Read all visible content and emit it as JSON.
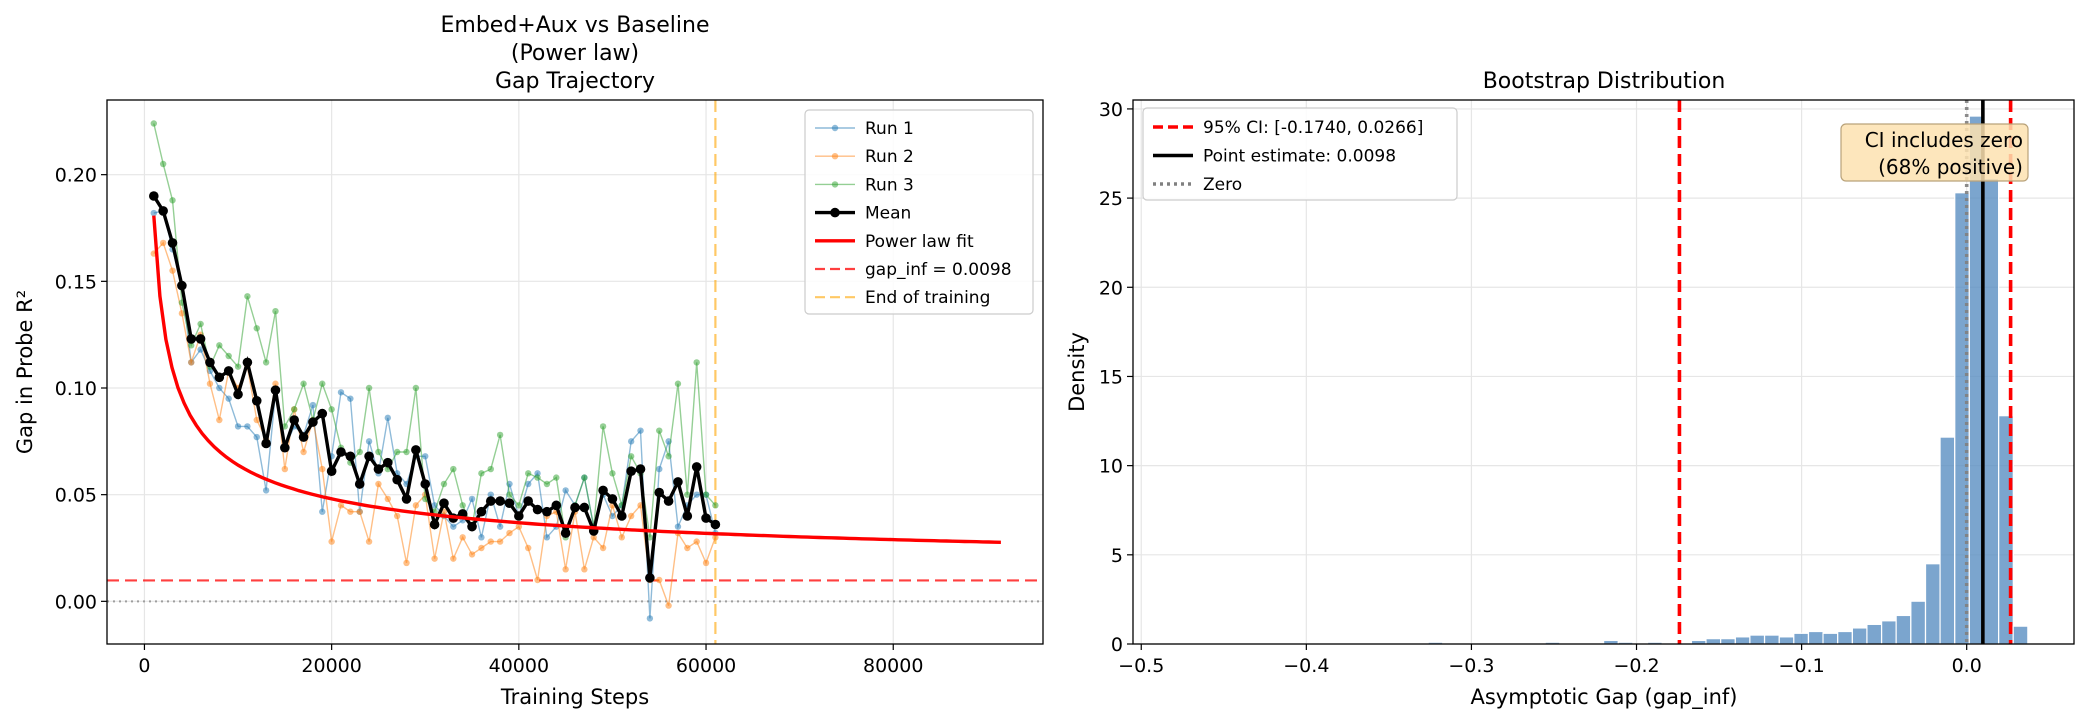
{
  "chart_data": [
    {
      "type": "line",
      "title": [
        "Embed+Aux vs Baseline",
        "(Power law)",
        "Gap Trajectory"
      ],
      "xlabel": "Training Steps",
      "ylabel": "Gap in Probe R²",
      "xlim": [
        -4000,
        96000
      ],
      "ylim": [
        -0.02,
        0.235
      ],
      "xticks": [
        0,
        20000,
        40000,
        60000,
        80000
      ],
      "xtick_labels": [
        "0",
        "20000",
        "40000",
        "60000",
        "80000"
      ],
      "yticks": [
        0.0,
        0.05,
        0.1,
        0.15,
        0.2
      ],
      "ytick_labels": [
        "0.00",
        "0.05",
        "0.10",
        "0.15",
        "0.20"
      ],
      "grid": true,
      "legend_position": "top-right",
      "colors": {
        "run1": "#1f77b4",
        "run2": "#ff7f0e",
        "run3": "#2ca02c",
        "mean": "#000000",
        "fit": "#ff0000",
        "gap_inf": "#ff0000",
        "end_of_training": "#ffa500"
      },
      "x": [
        1000,
        2000,
        3000,
        4000,
        5000,
        6000,
        7000,
        8000,
        9000,
        10000,
        11000,
        12000,
        13000,
        14000,
        15000,
        16000,
        17000,
        18000,
        19000,
        20000,
        21000,
        22000,
        23000,
        24000,
        25000,
        26000,
        27000,
        28000,
        29000,
        30000,
        31000,
        32000,
        33000,
        34000,
        35000,
        36000,
        37000,
        38000,
        39000,
        40000,
        41000,
        42000,
        43000,
        44000,
        45000,
        46000,
        47000,
        48000,
        49000,
        50000,
        51000,
        52000,
        53000,
        54000,
        55000,
        56000,
        57000,
        58000,
        59000,
        60000,
        61000
      ],
      "series": [
        {
          "name": "Run 1",
          "key": "run1",
          "values": [
            0.182,
            0.183,
            0.165,
            0.148,
            0.112,
            0.118,
            0.108,
            0.1,
            0.095,
            0.082,
            0.082,
            0.077,
            0.052,
            0.098,
            0.072,
            0.082,
            0.078,
            0.092,
            0.042,
            0.068,
            0.098,
            0.095,
            0.042,
            0.075,
            0.06,
            0.086,
            0.06,
            0.055,
            0.068,
            0.068,
            0.045,
            0.04,
            0.035,
            0.038,
            0.048,
            0.03,
            0.05,
            0.035,
            0.055,
            0.04,
            0.055,
            0.06,
            0.03,
            0.035,
            0.052,
            0.045,
            0.058,
            0.035,
            0.05,
            0.04,
            0.045,
            0.075,
            0.08,
            -0.008,
            0.062,
            0.075,
            0.035,
            0.045,
            0.05,
            0.05,
            0.032
          ]
        },
        {
          "name": "Run 2",
          "key": "run2",
          "values": [
            0.163,
            0.168,
            0.155,
            0.135,
            0.112,
            0.125,
            0.102,
            0.085,
            0.108,
            0.1,
            0.11,
            0.085,
            0.076,
            0.102,
            0.062,
            0.09,
            0.07,
            0.085,
            0.062,
            0.028,
            0.045,
            0.042,
            0.042,
            0.028,
            0.055,
            0.048,
            0.04,
            0.018,
            0.045,
            0.05,
            0.02,
            0.042,
            0.02,
            0.03,
            0.022,
            0.025,
            0.028,
            0.028,
            0.032,
            0.035,
            0.025,
            0.01,
            0.04,
            0.042,
            0.015,
            0.042,
            0.015,
            0.03,
            0.025,
            0.045,
            0.03,
            0.04,
            0.045,
            0.01,
            0.01,
            -0.002,
            0.032,
            0.025,
            0.028,
            0.018,
            0.03
          ]
        },
        {
          "name": "Run 3",
          "key": "run3",
          "values": [
            0.224,
            0.205,
            0.188,
            0.14,
            0.12,
            0.13,
            0.11,
            0.12,
            0.115,
            0.11,
            0.143,
            0.128,
            0.112,
            0.136,
            0.082,
            0.09,
            0.102,
            0.085,
            0.102,
            0.09,
            0.072,
            0.065,
            0.07,
            0.1,
            0.07,
            0.062,
            0.07,
            0.07,
            0.1,
            0.048,
            0.042,
            0.055,
            0.062,
            0.045,
            0.035,
            0.06,
            0.062,
            0.078,
            0.05,
            0.045,
            0.06,
            0.058,
            0.055,
            0.058,
            0.03,
            0.045,
            0.058,
            0.035,
            0.082,
            0.06,
            0.045,
            0.068,
            0.06,
            0.03,
            0.08,
            0.068,
            0.102,
            0.05,
            0.112,
            0.05,
            0.045
          ]
        },
        {
          "name": "Mean",
          "key": "mean",
          "values": [
            0.19,
            0.183,
            0.168,
            0.148,
            0.123,
            0.123,
            0.112,
            0.105,
            0.108,
            0.097,
            0.112,
            0.094,
            0.074,
            0.099,
            0.072,
            0.085,
            0.077,
            0.084,
            0.088,
            0.061,
            0.07,
            0.068,
            0.055,
            0.068,
            0.062,
            0.065,
            0.057,
            0.048,
            0.071,
            0.055,
            0.036,
            0.046,
            0.039,
            0.041,
            0.035,
            0.042,
            0.047,
            0.047,
            0.046,
            0.04,
            0.047,
            0.043,
            0.042,
            0.045,
            0.032,
            0.044,
            0.044,
            0.033,
            0.052,
            0.048,
            0.04,
            0.061,
            0.062,
            0.011,
            0.051,
            0.047,
            0.056,
            0.04,
            0.063,
            0.039,
            0.036
          ]
        }
      ],
      "fit": {
        "name": "Power law fit",
        "key": "fit",
        "gap_inf": 0.0098,
        "a": 0.171,
        "b": -0.5,
        "x_start": 1000,
        "x_end": 91500
      },
      "reference_lines": [
        {
          "name": "gap_inf = 0.0098",
          "key": "gap_inf",
          "orientation": "horizontal",
          "value": 0.0098
        },
        {
          "name": "End of training",
          "key": "end_of_training",
          "orientation": "vertical",
          "value": 61000
        },
        {
          "name": "",
          "key": "zero",
          "orientation": "horizontal",
          "value": 0.0
        }
      ],
      "legend": [
        "Run 1",
        "Run 2",
        "Run 3",
        "Mean",
        "Power law fit",
        "gap_inf = 0.0098",
        "End of training"
      ]
    },
    {
      "type": "bar",
      "subtype": "histogram",
      "title": "Bootstrap Distribution",
      "xlabel": "Asymptotic Gap (gap_inf)",
      "ylabel": "Density",
      "xlim": [
        -0.505,
        0.065
      ],
      "ylim": [
        0,
        30.5
      ],
      "xticks": [
        -0.5,
        -0.4,
        -0.3,
        -0.2,
        -0.1,
        0.0
      ],
      "xtick_labels": [
        "−0.5",
        "−0.4",
        "−0.3",
        "−0.2",
        "−0.1",
        "0.0"
      ],
      "yticks": [
        0,
        5,
        10,
        15,
        20,
        25,
        30
      ],
      "ytick_labels": [
        "0",
        "5",
        "10",
        "15",
        "20",
        "25",
        "30"
      ],
      "grid": true,
      "legend_position": "top-left",
      "bar_color": "#5a8fc2",
      "bin_width": 0.00886,
      "bin_centers": [
        -0.3218,
        -0.2509,
        -0.2155,
        -0.2066,
        -0.1889,
        -0.1623,
        -0.1535,
        -0.1446,
        -0.1357,
        -0.1269,
        -0.118,
        -0.1091,
        -0.1003,
        -0.0914,
        -0.0826,
        -0.0737,
        -0.0648,
        -0.056,
        -0.0471,
        -0.0383,
        -0.0294,
        -0.0205,
        -0.0117,
        -0.0028,
        0.006,
        0.0149,
        0.0238,
        0.0326,
        0.0415
      ],
      "densities": [
        0.1,
        0.1,
        0.2,
        0.1,
        0.1,
        0.2,
        0.3,
        0.3,
        0.4,
        0.5,
        0.5,
        0.4,
        0.6,
        0.7,
        0.6,
        0.7,
        0.9,
        1.1,
        1.3,
        1.6,
        2.4,
        4.5,
        11.6,
        25.3,
        29.6,
        26.1,
        12.8,
        1.0,
        0.0
      ],
      "reference_lines": [
        {
          "name": "95% CI: [-0.1740, 0.0266]",
          "key": "ci",
          "orientation": "vertical",
          "values": [
            -0.174,
            0.0266
          ],
          "color": "#ff0000"
        },
        {
          "name": "Point estimate: 0.0098",
          "key": "point",
          "orientation": "vertical",
          "values": [
            0.0098
          ],
          "color": "#000000"
        },
        {
          "name": "Zero",
          "key": "zero",
          "orientation": "vertical",
          "values": [
            0.0
          ],
          "color": "#808080"
        }
      ],
      "legend": [
        "95% CI: [-0.1740, 0.0266]",
        "Point estimate: 0.0098",
        "Zero"
      ],
      "annotation": [
        "CI includes zero",
        "(68% positive)"
      ],
      "annotation_bg": "#fde2b0"
    }
  ]
}
